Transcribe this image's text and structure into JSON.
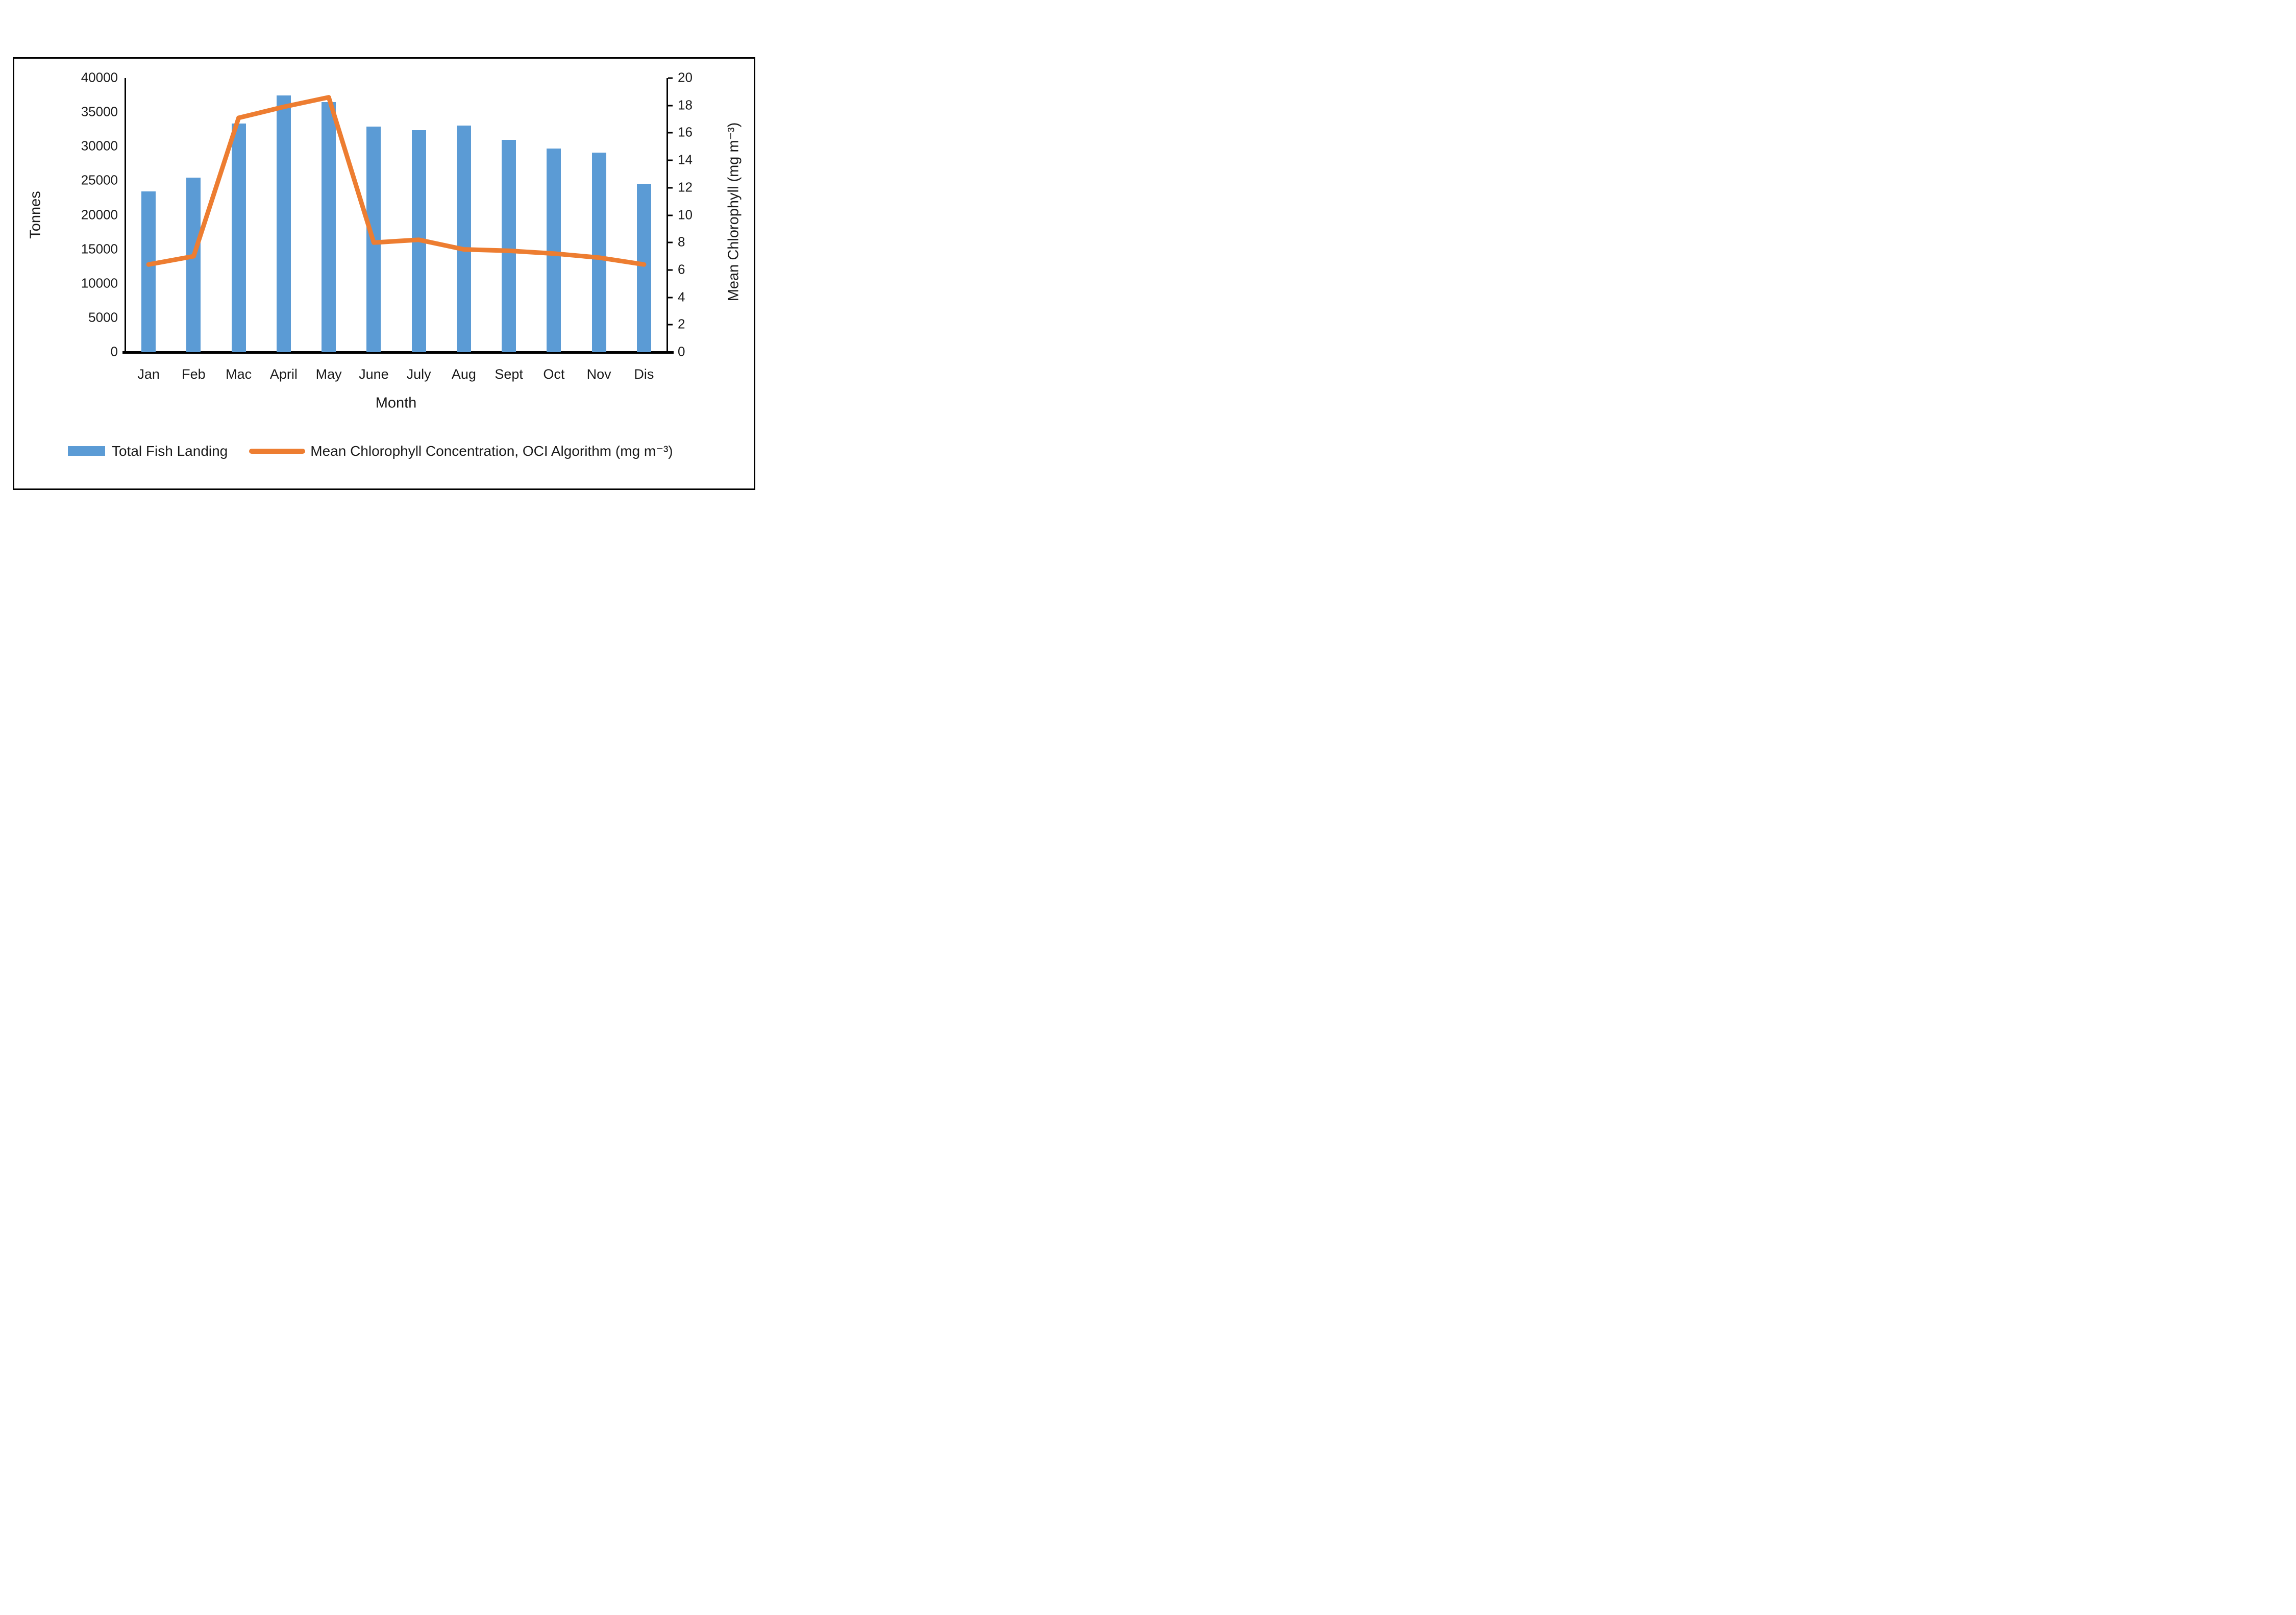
{
  "chart_data": {
    "type": "bar",
    "subtype": "combo-bar-line-dual-axis",
    "categories": [
      "Jan",
      "Feb",
      "Mac",
      "April",
      "May",
      "June",
      "July",
      "Aug",
      "Sept",
      "Oct",
      "Nov",
      "Dis"
    ],
    "series": [
      {
        "name": "Total Fish Landing",
        "type": "bar",
        "axis": "left",
        "color": "#5B9BD5",
        "values": [
          23500,
          25500,
          33400,
          37500,
          36500,
          32900,
          32400,
          33100,
          31000,
          29700,
          29100,
          24600
        ]
      },
      {
        "name": "Mean Chlorophyll Concentration, OCI Algorithm (mg m⁻³)",
        "type": "line",
        "axis": "right",
        "color": "#ED7D31",
        "values": [
          6.4,
          7.0,
          17.1,
          17.9,
          18.6,
          8.0,
          8.2,
          7.5,
          7.4,
          7.2,
          6.9,
          6.4
        ]
      }
    ],
    "left_axis": {
      "title": "Tonnes",
      "min": 0,
      "max": 40000,
      "tick_step": 5000,
      "tick_labels": [
        "40000",
        "35000",
        "30000",
        "25000",
        "20000",
        "15000",
        "10000",
        "5000",
        "0"
      ]
    },
    "right_axis": {
      "title": "Mean Chlorophyll (mg m⁻³)",
      "min": 0,
      "max": 20,
      "tick_step": 2,
      "tick_labels": [
        "20",
        "18",
        "16",
        "14",
        "12",
        "10",
        "8",
        "6",
        "4",
        "2",
        "0"
      ]
    },
    "x_axis": {
      "title": "Month"
    },
    "legend_position": "bottom",
    "grid": false,
    "colors": {
      "bar": "#5B9BD5",
      "line": "#ED7D31",
      "axis": "#000000",
      "text": "#1a1a1a",
      "background": "#ffffff"
    }
  }
}
